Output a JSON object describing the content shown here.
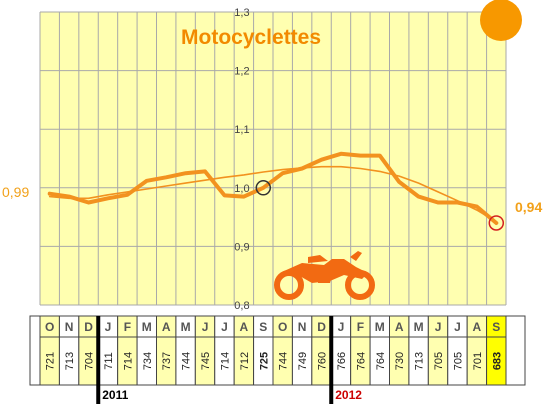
{
  "chart_data": {
    "type": "line",
    "title": "Motocyclettes",
    "ylim": [
      0.8,
      1.3
    ],
    "yticks": [
      "0,8",
      "0,9",
      "1,0",
      "1,1",
      "1,2",
      "1,3"
    ],
    "grid": true,
    "months": [
      "O",
      "N",
      "D",
      "J",
      "F",
      "M",
      "A",
      "M",
      "J",
      "J",
      "A",
      "S",
      "O",
      "N",
      "D",
      "J",
      "F",
      "M",
      "A",
      "M",
      "J",
      "J",
      "A",
      "S"
    ],
    "counts": [
      "721",
      "713",
      "704",
      "711",
      "714",
      "734",
      "737",
      "744",
      "745",
      "714",
      "712",
      "725",
      "744",
      "749",
      "760",
      "766",
      "764",
      "764",
      "730",
      "713",
      "705",
      "705",
      "701",
      "683"
    ],
    "series": [
      {
        "values": [
          0.99,
          0.985,
          0.975,
          0.982,
          0.988,
          1.012,
          1.018,
          1.025,
          1.028,
          0.987,
          0.985,
          1.0,
          1.025,
          1.033,
          1.048,
          1.058,
          1.055,
          1.055,
          1.01,
          0.985,
          0.975,
          0.975,
          0.968,
          0.94
        ]
      },
      {
        "values": [
          0.985,
          0.982,
          0.982,
          0.988,
          0.993,
          0.998,
          1.003,
          1.008,
          1.013,
          1.018,
          1.022,
          1.027,
          1.031,
          1.034,
          1.036,
          1.036,
          1.033,
          1.028,
          1.02,
          1.008,
          0.993,
          0.978,
          0.962,
          0.942
        ]
      }
    ],
    "end_labels": {
      "start": "0,99",
      "end": "0,94"
    },
    "years": [
      {
        "label": "2011",
        "start_index": 3
      },
      {
        "label": "2012",
        "start_index": 15
      }
    ],
    "colors": {
      "line": "#f2921f",
      "accent": "#f28a00",
      "highlight_cell": "#ffff00",
      "alt_cell": "#ffffb0",
      "year_2011": "#000000",
      "year_2012": "#cc0000",
      "end_circle": "#d42020"
    }
  }
}
